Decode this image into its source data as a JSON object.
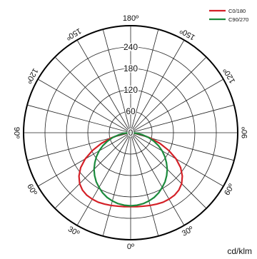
{
  "chart_data": {
    "type": "polar",
    "unit": "cd/klm",
    "radial_max": 300,
    "radial_ticks": [
      0,
      60,
      120,
      180,
      240
    ],
    "angle_labels": [
      {
        "value": 0,
        "text": "0º"
      },
      {
        "value": 30,
        "text": "30º"
      },
      {
        "value": -30,
        "text": "30º"
      },
      {
        "value": 60,
        "text": "60º"
      },
      {
        "value": -60,
        "text": "60º"
      },
      {
        "value": 90,
        "text": "90º"
      },
      {
        "value": -90,
        "text": "90º"
      },
      {
        "value": 120,
        "text": "120º"
      },
      {
        "value": -120,
        "text": "120º"
      },
      {
        "value": 150,
        "text": "150º"
      },
      {
        "value": -150,
        "text": "150º"
      },
      {
        "value": 180,
        "text": "180º"
      }
    ],
    "series": [
      {
        "name": "C0/180",
        "color": "#d42027",
        "angles": [
          0,
          5,
          10,
          15,
          20,
          25,
          30,
          35,
          40,
          45,
          50,
          55,
          60,
          65,
          70,
          75,
          80,
          85,
          90
        ],
        "values": [
          207,
          208,
          209,
          211,
          213,
          215,
          215,
          214,
          210,
          202,
          189,
          171,
          147,
          118,
          87,
          56,
          30,
          11,
          2
        ]
      },
      {
        "name": "C90/270",
        "color": "#1b8a3c",
        "angles": [
          0,
          5,
          10,
          15,
          20,
          25,
          30,
          35,
          40,
          45,
          50,
          55,
          60,
          65,
          70,
          75,
          80,
          85,
          90
        ],
        "values": [
          205,
          204,
          202,
          198,
          193,
          186,
          177,
          168,
          157,
          145,
          131,
          117,
          102,
          86,
          69,
          52,
          34,
          17,
          1
        ]
      }
    ]
  }
}
